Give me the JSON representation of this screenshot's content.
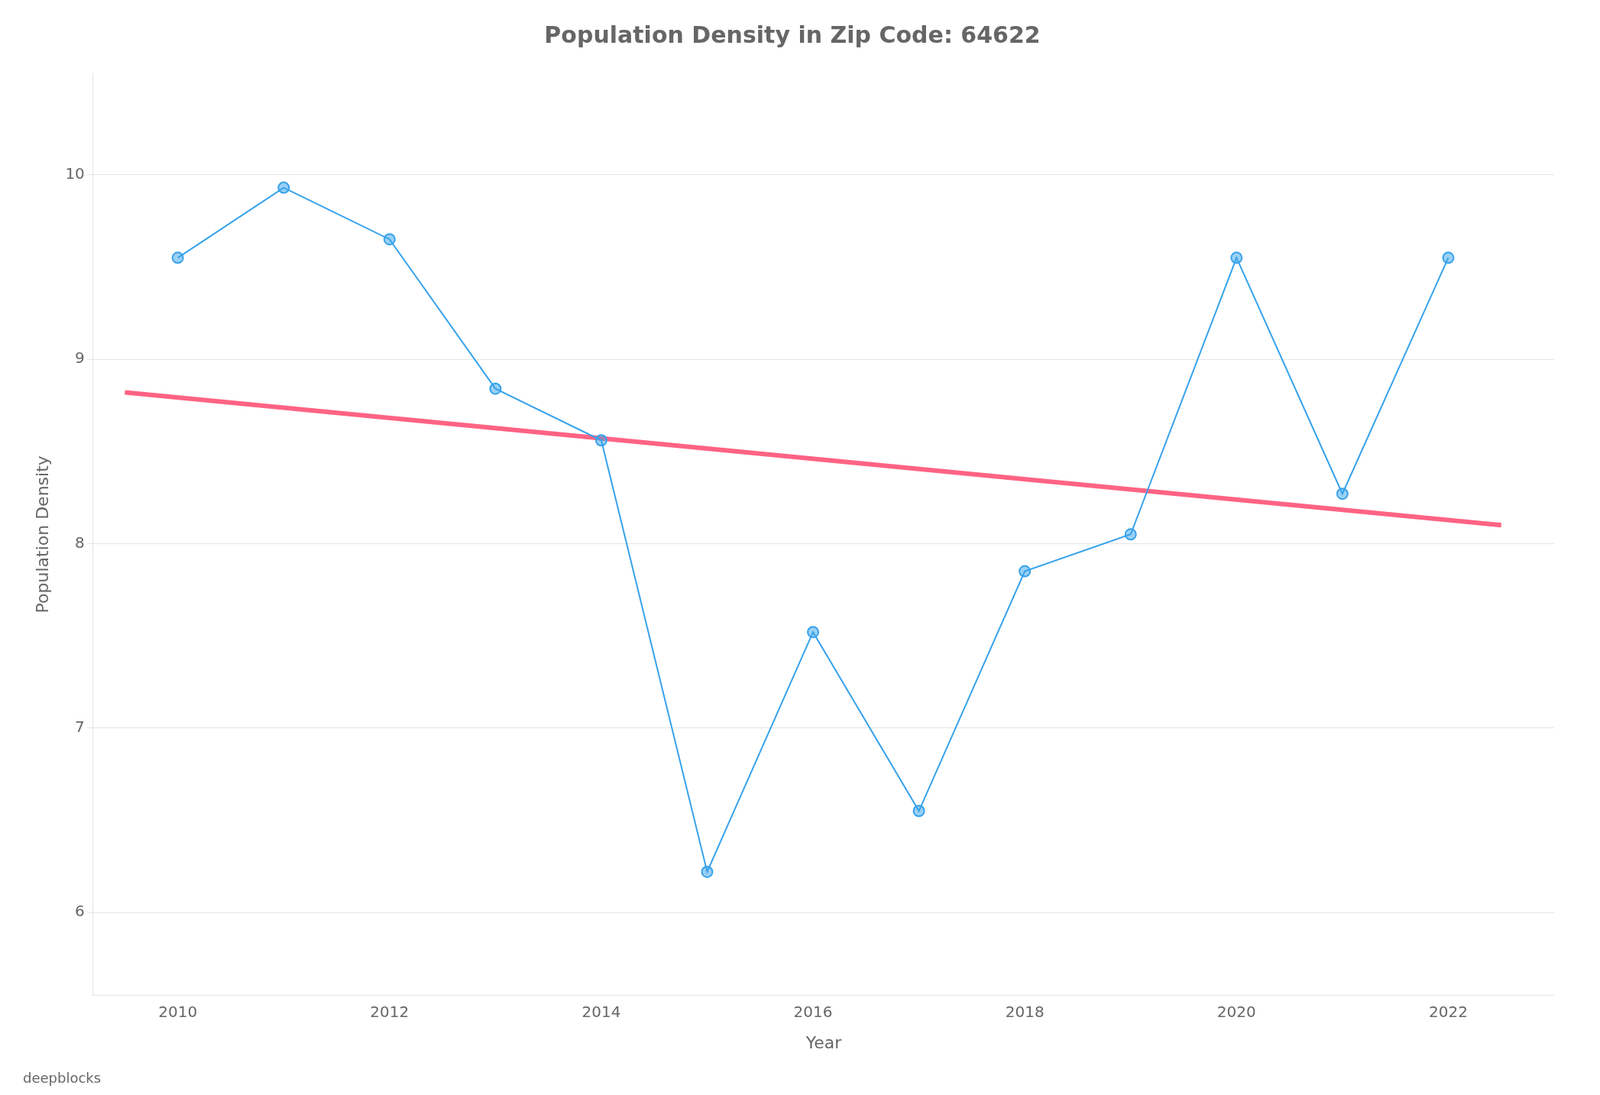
{
  "chart_data": {
    "type": "line",
    "title": "Population Density in Zip Code: 64622",
    "x_label": "Year",
    "y_label": "Population Density",
    "series": [
      {
        "x": [
          2010,
          2011,
          2012,
          2013,
          2014,
          2015,
          2016,
          2017,
          2018,
          2019,
          2020,
          2021,
          2022
        ],
        "values": [
          9.55,
          9.93,
          9.65,
          8.84,
          8.56,
          6.22,
          7.52,
          6.55,
          7.85,
          8.05,
          9.55,
          8.27,
          9.55
        ],
        "marker": "circle",
        "line_style": "solid"
      },
      {
        "x": [
          2009.5,
          2022.5
        ],
        "values": [
          8.82,
          8.1
        ],
        "marker": "none",
        "line_style": "solid"
      }
    ],
    "xlim": [
      2009.2,
      2023.0
    ],
    "xticks": [
      2010,
      2012,
      2014,
      2016,
      2018,
      2020,
      2022
    ],
    "ylim": [
      5.55,
      10.55
    ],
    "yticks": [
      6,
      7,
      8,
      9,
      10
    ],
    "grid": "y",
    "annotations": [
      "deepblocks"
    ]
  }
}
